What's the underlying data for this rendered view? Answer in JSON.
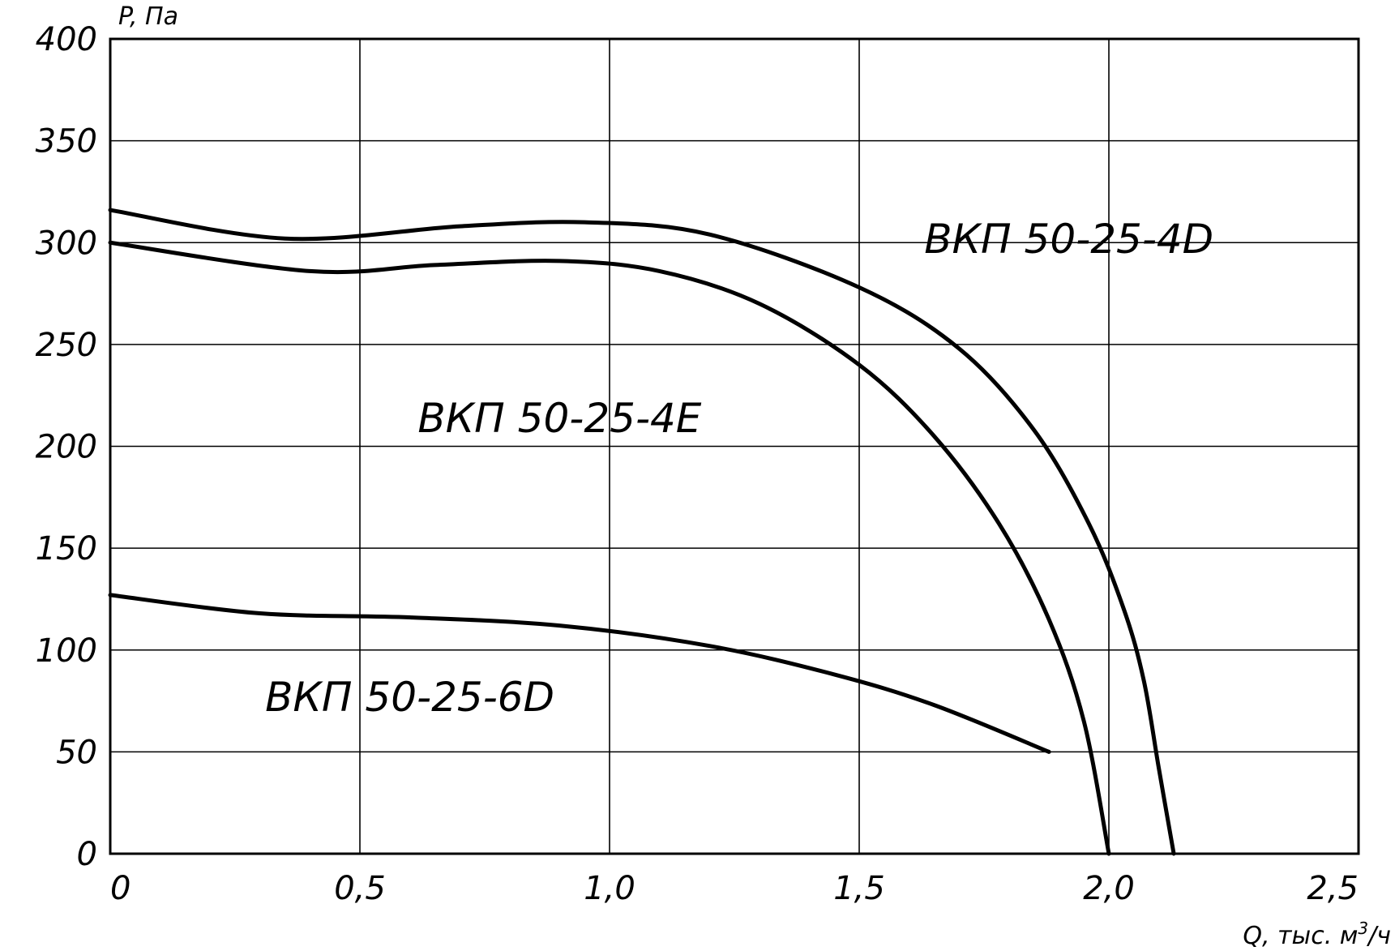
{
  "chart_data": {
    "type": "line",
    "title": "",
    "xlabel": "Q, тыс. м",
    "xlabel_sup": "3",
    "xlabel_suffix": "/ч",
    "ylabel": "P, Па",
    "xlim": [
      0,
      2.5
    ],
    "ylim": [
      0,
      400
    ],
    "grid": true,
    "x_ticks": [
      0,
      0.5,
      1.0,
      1.5,
      2.0,
      2.5
    ],
    "x_tick_labels": [
      "0",
      "0,5",
      "1,0",
      "1,5",
      "2,0",
      "2,5"
    ],
    "y_ticks": [
      0,
      50,
      100,
      150,
      200,
      250,
      300,
      350,
      400
    ],
    "y_tick_labels": [
      "0",
      "50",
      "100",
      "150",
      "200",
      "250",
      "300",
      "350",
      "400"
    ],
    "series": [
      {
        "name": "ВКП 50-25-4D",
        "points": [
          [
            0,
            316
          ],
          [
            0.35,
            302
          ],
          [
            0.7,
            308
          ],
          [
            0.95,
            310
          ],
          [
            1.2,
            304
          ],
          [
            1.5,
            278
          ],
          [
            1.7,
            248
          ],
          [
            1.85,
            208
          ],
          [
            1.96,
            162
          ],
          [
            2.03,
            120
          ],
          [
            2.07,
            85
          ],
          [
            2.1,
            42
          ],
          [
            2.13,
            0
          ]
        ]
      },
      {
        "name": "ВКП 50-25-4E",
        "points": [
          [
            0,
            300
          ],
          [
            0.4,
            286
          ],
          [
            0.65,
            289
          ],
          [
            0.9,
            291
          ],
          [
            1.1,
            286
          ],
          [
            1.3,
            270
          ],
          [
            1.5,
            240
          ],
          [
            1.65,
            205
          ],
          [
            1.78,
            162
          ],
          [
            1.88,
            115
          ],
          [
            1.95,
            65
          ],
          [
            2.0,
            0
          ]
        ]
      },
      {
        "name": "ВКП 50-25-6D",
        "points": [
          [
            0,
            127
          ],
          [
            0.3,
            118
          ],
          [
            0.6,
            116
          ],
          [
            0.9,
            112
          ],
          [
            1.2,
            102
          ],
          [
            1.45,
            88
          ],
          [
            1.65,
            73
          ],
          [
            1.88,
            50
          ]
        ]
      }
    ],
    "annotations": [
      {
        "text": "ВКП 50-25-4D",
        "x": 1.92,
        "y": 295
      },
      {
        "text": "ВКП 50-25-4E",
        "x": 0.9,
        "y": 207
      },
      {
        "text": "ВКП 50-25-6D",
        "x": 0.6,
        "y": 70
      }
    ]
  }
}
